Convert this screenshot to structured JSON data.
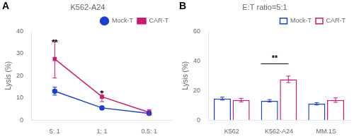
{
  "chart_data": [
    {
      "type": "line",
      "title": "K562-A24",
      "ylabel": "Lysis (%)",
      "categories": [
        "5: 1",
        "1: 1",
        "0.5: 1"
      ],
      "series": [
        {
          "name": "Mock-T",
          "color": "#1a3fcc",
          "marker": "circle",
          "values": [
            13.0,
            5.5,
            3.0
          ],
          "errors": [
            1.8,
            0.8,
            0.6
          ]
        },
        {
          "name": "CAR-T",
          "color": "#cc1a6e",
          "marker": "square",
          "values": [
            27.5,
            10.5,
            3.5
          ],
          "errors": [
            8.5,
            2.2,
            1.2
          ]
        }
      ],
      "ylim": [
        0,
        40
      ],
      "yticks": [
        0,
        10,
        20,
        30,
        40
      ],
      "grid": false,
      "legend": "upper right",
      "annotations": [
        {
          "text": "A"
        },
        {
          "text": "**",
          "x": "5: 1",
          "y": 36.5
        },
        {
          "text": "*",
          "x": "1: 1",
          "y": 13.5
        }
      ]
    },
    {
      "type": "bar",
      "title": "E:T ratio=5:1",
      "ylabel": "Lysis (%)",
      "categories": [
        "K562",
        "K562-A24",
        "MM.1S"
      ],
      "series": [
        {
          "name": "Mock-T",
          "color": "#1a3fcc",
          "values": [
            14.5,
            13.0,
            11.0
          ],
          "errors": [
            1.0,
            0.8,
            0.8
          ]
        },
        {
          "name": "CAR-T",
          "color": "#cc1a6e",
          "values": [
            13.5,
            27.5,
            13.5
          ],
          "errors": [
            1.2,
            2.2,
            1.5
          ]
        }
      ],
      "ylim": [
        0,
        60
      ],
      "yticks": [
        0,
        20,
        40,
        60
      ],
      "grid": false,
      "legend": "upper right",
      "annotations": [
        {
          "text": "B"
        },
        {
          "text": "**",
          "x": "K562-A24",
          "y": 38.8,
          "bracket_y": 38.0
        }
      ]
    }
  ]
}
